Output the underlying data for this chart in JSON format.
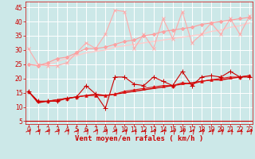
{
  "background_color": "#cce8e8",
  "grid_color": "#ffffff",
  "xlabel": "Vent moyen/en rafales ( km/h )",
  "xlabel_color": "#cc0000",
  "xlabel_fontsize": 6.5,
  "tick_color": "#cc0000",
  "tick_fontsize": 5.5,
  "yticks": [
    5,
    10,
    15,
    20,
    25,
    30,
    35,
    40,
    45
  ],
  "xticks": [
    0,
    1,
    2,
    3,
    4,
    5,
    6,
    7,
    8,
    9,
    10,
    11,
    12,
    13,
    14,
    15,
    16,
    17,
    18,
    19,
    20,
    21,
    22,
    23
  ],
  "ylim": [
    4,
    47
  ],
  "xlim": [
    -0.3,
    23.3
  ],
  "arrow_color": "#cc0000",
  "lines": [
    {
      "y": [
        30.5,
        25.0,
        24.5,
        24.5,
        25.5,
        29.0,
        32.5,
        30.5,
        35.5,
        44.0,
        43.5,
        30.5,
        35.5,
        30.5,
        41.0,
        34.0,
        43.5,
        32.5,
        35.5,
        39.5,
        35.5,
        41.0,
        35.5,
        42.0
      ],
      "color": "#ffaaaa",
      "lw": 0.8,
      "marker": "x",
      "ms": 3,
      "zorder": 3
    },
    {
      "y": [
        25.0,
        24.5,
        25.0,
        26.0,
        27.0,
        28.0,
        29.0,
        29.5,
        30.0,
        31.0,
        31.5,
        32.0,
        32.5,
        33.0,
        33.5,
        34.0,
        34.5,
        35.0,
        35.5,
        36.5,
        37.0,
        38.0,
        38.5,
        39.5
      ],
      "color": "#ffcccc",
      "lw": 1.0,
      "marker": null,
      "ms": 0,
      "zorder": 2
    },
    {
      "y": [
        25.0,
        24.5,
        25.5,
        27.0,
        27.5,
        29.0,
        30.5,
        30.5,
        31.0,
        32.0,
        33.0,
        33.5,
        35.0,
        35.5,
        36.5,
        37.0,
        37.5,
        38.0,
        39.0,
        39.5,
        40.0,
        40.5,
        41.0,
        41.5
      ],
      "color": "#ff9999",
      "lw": 0.8,
      "marker": "D",
      "ms": 2,
      "zorder": 3,
      "mfc": "#ffaaaa"
    },
    {
      "y": [
        15.5,
        12.0,
        12.0,
        12.0,
        13.0,
        13.5,
        17.5,
        14.5,
        9.5,
        20.5,
        20.5,
        18.0,
        17.5,
        20.5,
        19.0,
        17.5,
        22.5,
        17.5,
        20.5,
        21.0,
        20.5,
        22.5,
        20.5,
        20.5
      ],
      "color": "#cc0000",
      "lw": 0.8,
      "marker": "+",
      "ms": 4,
      "zorder": 4
    },
    {
      "y": [
        15.5,
        11.5,
        12.0,
        12.5,
        13.0,
        13.5,
        14.0,
        14.5,
        14.0,
        14.5,
        15.0,
        15.5,
        16.0,
        16.5,
        17.0,
        17.5,
        18.0,
        18.5,
        19.0,
        19.5,
        19.5,
        20.0,
        20.5,
        21.0
      ],
      "color": "#cc0000",
      "lw": 1.0,
      "marker": null,
      "ms": 0,
      "zorder": 2
    },
    {
      "y": [
        15.5,
        12.0,
        12.0,
        12.5,
        13.0,
        13.5,
        14.0,
        14.0,
        14.0,
        14.5,
        15.5,
        16.0,
        16.5,
        17.0,
        17.5,
        17.5,
        18.5,
        18.0,
        19.0,
        19.5,
        20.0,
        20.5,
        20.5,
        21.0
      ],
      "color": "#dd1111",
      "lw": 0.8,
      "marker": "^",
      "ms": 2.5,
      "zorder": 3
    }
  ]
}
